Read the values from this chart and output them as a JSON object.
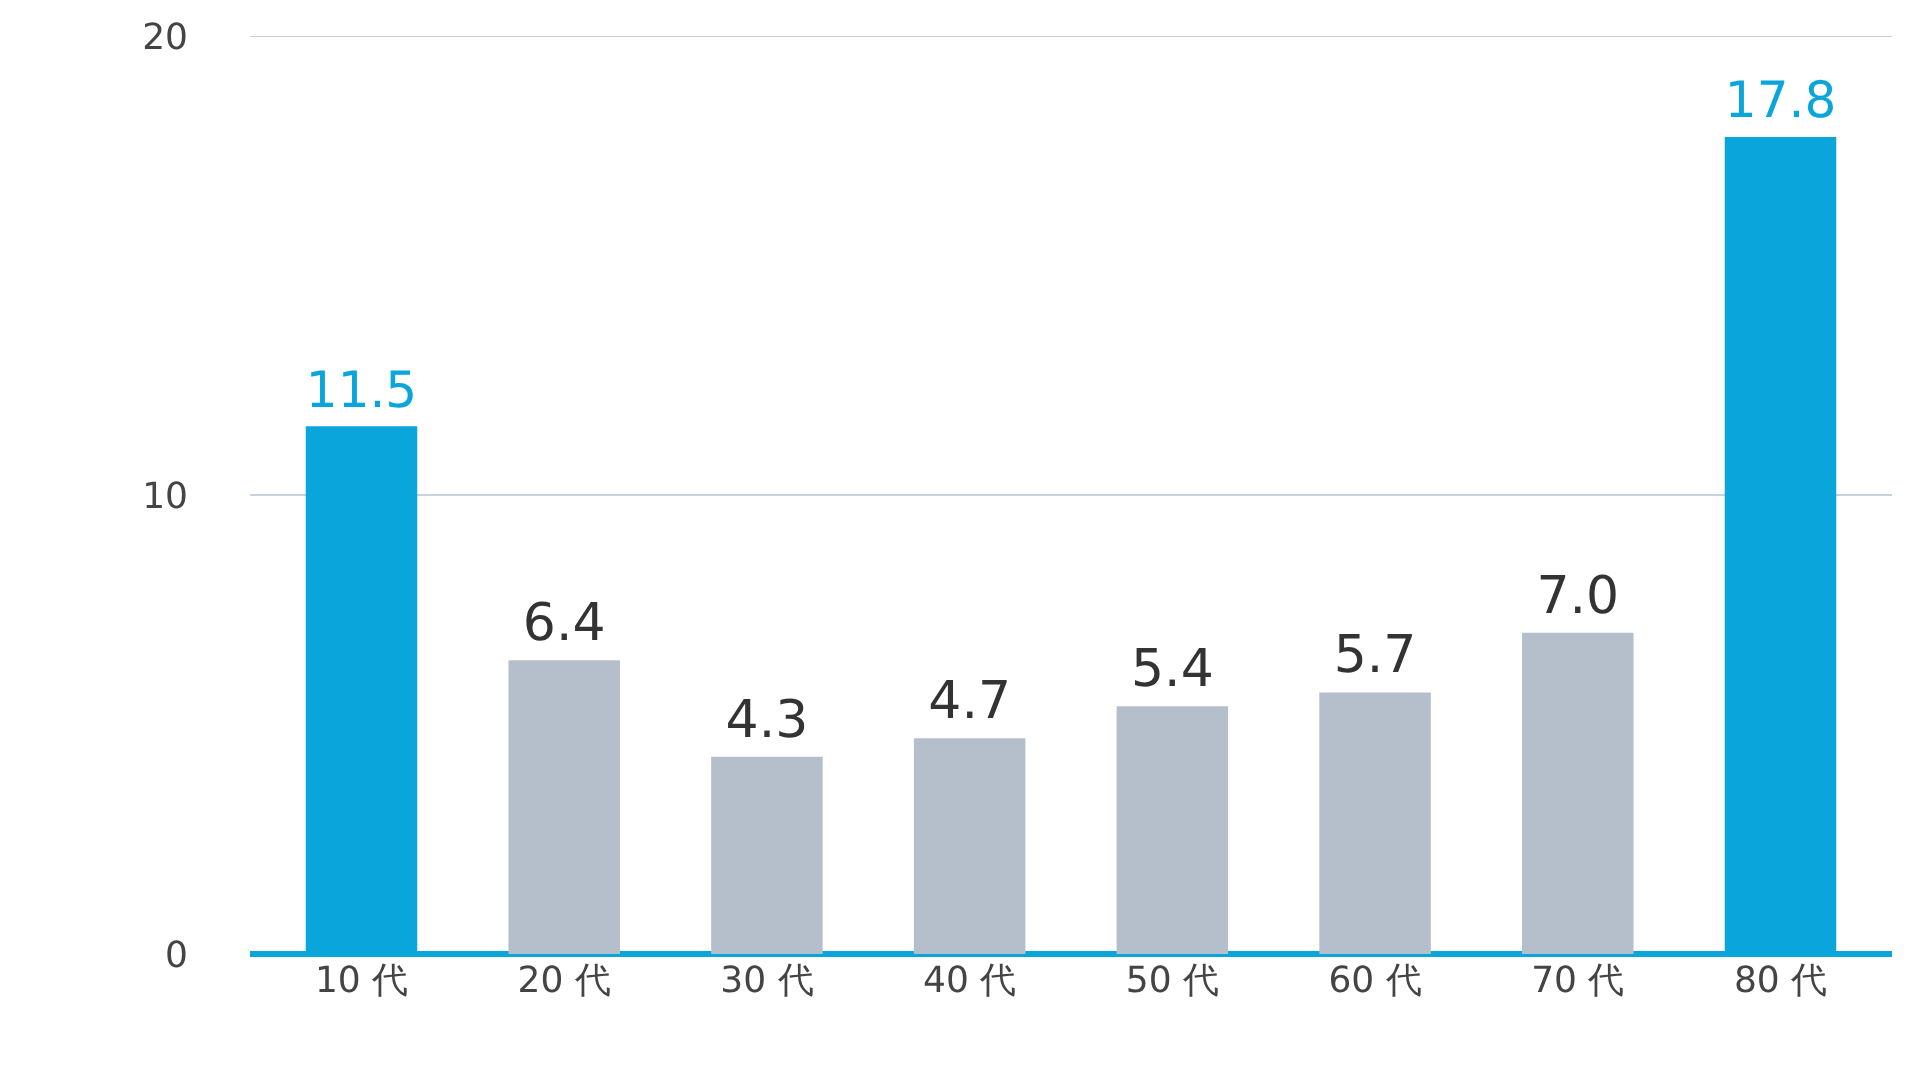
{
  "chart_data": {
    "type": "bar",
    "categories": [
      "10 代",
      "20 代",
      "30 代",
      "40 代",
      "50 代",
      "60 代",
      "70 代",
      "80 代"
    ],
    "values": [
      11.5,
      6.4,
      4.3,
      4.7,
      5.4,
      5.7,
      7.0,
      17.8
    ],
    "colors": [
      "#0aa6db",
      "#b4bfcb",
      "#b4bfcb",
      "#b4bfcb",
      "#b4bfcb",
      "#b4bfcb",
      "#b4bfcb",
      "#0aa6db"
    ],
    "value_labels": [
      "11.5",
      "6.4",
      "4.3",
      "4.7",
      "5.4",
      "5.7",
      "7.0",
      "17.8"
    ],
    "ylim": [
      0,
      20
    ],
    "yticks": [
      0,
      10,
      20
    ],
    "grid": "y",
    "legend": false
  }
}
